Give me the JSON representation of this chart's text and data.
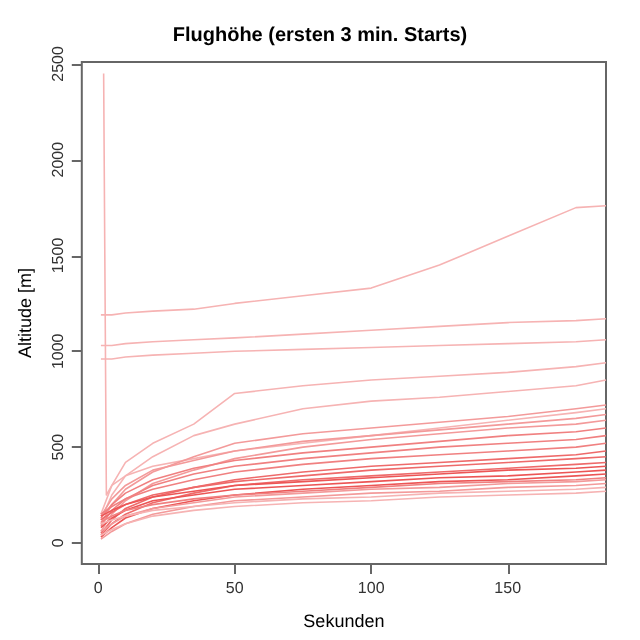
{
  "chart_data": {
    "type": "line",
    "title": "Flughöhe (ersten 3 min. Starts)",
    "xlabel": "Sekunden",
    "ylabel": "Altitude [m]",
    "x": [
      1,
      5,
      10,
      20,
      35,
      50,
      75,
      100,
      125,
      150,
      175,
      186
    ],
    "xlim": [
      -6,
      186
    ],
    "xticks": [
      0,
      50,
      100,
      150
    ],
    "ylim": [
      -110,
      2510
    ],
    "yticks": [
      0,
      500,
      1000,
      1500,
      2000,
      2500
    ],
    "grid": false,
    "marker": "none",
    "line_style": "solid",
    "series": [
      {
        "color": "#f6b3b3",
        "x": [
          2,
          3,
          5,
          10,
          20,
          35,
          50,
          75,
          100,
          125,
          150,
          175,
          186
        ],
        "values": [
          2450,
          250,
          300,
          350,
          400,
          440,
          480,
          520,
          560,
          600,
          640,
          680,
          700
        ]
      },
      {
        "color": "#f6b3b3",
        "values": [
          1190,
          1190,
          1200,
          1210,
          1220,
          1250,
          1290,
          1330,
          1450,
          1600,
          1750,
          1760
        ]
      },
      {
        "color": "#f6b3b3",
        "values": [
          1030,
          1030,
          1040,
          1050,
          1060,
          1070,
          1090,
          1110,
          1130,
          1150,
          1160,
          1170
        ]
      },
      {
        "color": "#f6b3b3",
        "values": [
          960,
          960,
          970,
          980,
          990,
          1000,
          1010,
          1020,
          1030,
          1040,
          1050,
          1060
        ]
      },
      {
        "color": "#f6b3b3",
        "values": [
          150,
          300,
          420,
          520,
          620,
          780,
          820,
          850,
          870,
          890,
          920,
          940
        ]
      },
      {
        "color": "#f6b3b3",
        "values": [
          120,
          250,
          350,
          450,
          560,
          620,
          700,
          740,
          760,
          790,
          820,
          850
        ]
      },
      {
        "color": "#f39a9a",
        "values": [
          100,
          200,
          280,
          370,
          450,
          520,
          570,
          600,
          630,
          660,
          700,
          720
        ]
      },
      {
        "color": "#f39a9a",
        "values": [
          140,
          230,
          300,
          380,
          430,
          480,
          530,
          560,
          590,
          620,
          650,
          670
        ]
      },
      {
        "color": "#f39a9a",
        "values": [
          60,
          150,
          220,
          310,
          380,
          440,
          500,
          540,
          570,
          600,
          620,
          640
        ]
      },
      {
        "color": "#f08080",
        "values": [
          130,
          200,
          260,
          330,
          390,
          430,
          470,
          500,
          530,
          560,
          580,
          600
        ]
      },
      {
        "color": "#f08080",
        "values": [
          90,
          170,
          230,
          300,
          360,
          400,
          440,
          470,
          500,
          520,
          540,
          560
        ]
      },
      {
        "color": "#f08080",
        "values": [
          150,
          190,
          230,
          280,
          330,
          370,
          410,
          440,
          460,
          480,
          500,
          520
        ]
      },
      {
        "color": "#ee6a6a",
        "values": [
          50,
          120,
          180,
          240,
          290,
          330,
          370,
          400,
          420,
          440,
          460,
          480
        ]
      },
      {
        "color": "#ee6a6a",
        "values": [
          120,
          160,
          200,
          250,
          290,
          320,
          350,
          380,
          400,
          420,
          440,
          450
        ]
      },
      {
        "color": "#ee6a6a",
        "values": [
          40,
          100,
          150,
          210,
          260,
          300,
          330,
          350,
          370,
          390,
          410,
          420
        ]
      },
      {
        "color": "#ec5555",
        "values": [
          140,
          170,
          200,
          240,
          270,
          300,
          320,
          340,
          360,
          380,
          390,
          400
        ]
      },
      {
        "color": "#ec5555",
        "values": [
          80,
          130,
          170,
          220,
          250,
          280,
          300,
          320,
          340,
          350,
          370,
          380
        ]
      },
      {
        "color": "#ec5555",
        "values": [
          30,
          80,
          130,
          180,
          220,
          250,
          280,
          300,
          320,
          330,
          350,
          360
        ]
      },
      {
        "color": "#f08080",
        "values": [
          110,
          140,
          170,
          200,
          230,
          250,
          270,
          290,
          310,
          320,
          330,
          340
        ]
      },
      {
        "color": "#f39a9a",
        "values": [
          60,
          100,
          140,
          180,
          210,
          240,
          260,
          280,
          290,
          310,
          320,
          330
        ]
      },
      {
        "color": "#f39a9a",
        "values": [
          20,
          60,
          100,
          150,
          190,
          220,
          240,
          260,
          270,
          290,
          300,
          310
        ]
      },
      {
        "color": "#f6b3b3",
        "values": [
          100,
          120,
          140,
          170,
          190,
          210,
          230,
          240,
          260,
          270,
          280,
          290
        ]
      },
      {
        "color": "#f6b3b3",
        "values": [
          40,
          70,
          100,
          140,
          170,
          190,
          210,
          220,
          240,
          250,
          260,
          270
        ]
      }
    ]
  }
}
